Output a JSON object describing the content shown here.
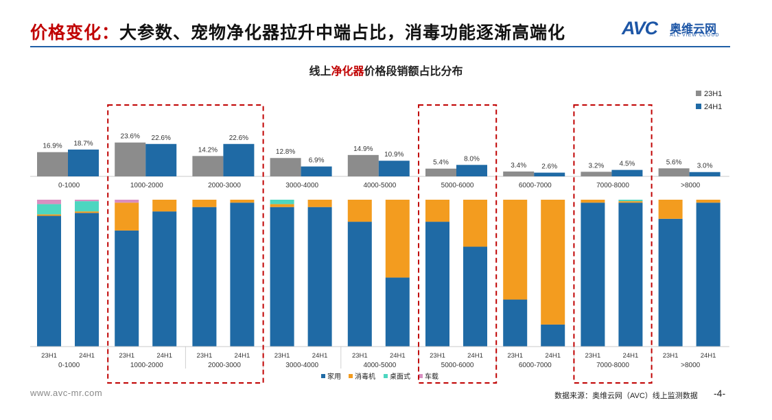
{
  "slide": {
    "title_highlight": "价格变化：",
    "title_rest": "大参数、宠物净化器拉升中端占比，消毒功能逐渐高端化",
    "logo_mark": "AVC",
    "logo_cn": "奥维云网",
    "logo_en": "ALL VIEW CLOUD",
    "footer_url": "www.avc-mr.com",
    "footer_source": "数据来源：奥维云网（AVC）线上监测数据",
    "page_number": "-4-"
  },
  "chart_data": [
    {
      "type": "bar",
      "title_pre": "线上",
      "title_highlight": "净化器",
      "title_post": "价格段销额占比分布",
      "categories": [
        "0-1000",
        "1000-2000",
        "2000-3000",
        "3000-4000",
        "4000-5000",
        "5000-6000",
        "6000-7000",
        "7000-8000",
        ">8000"
      ],
      "series": [
        {
          "name": "23H1",
          "color": "#8c8c8c",
          "values": [
            16.9,
            23.6,
            14.2,
            12.8,
            14.9,
            5.4,
            3.4,
            3.2,
            5.6
          ],
          "labels": [
            "16.9%",
            "23.6%",
            "14.2%",
            "12.8%",
            "14.9%",
            "5.4%",
            "3.4%",
            "3.2%",
            "5.6%"
          ]
        },
        {
          "name": "24H1",
          "color": "#1f6aa5",
          "values": [
            18.7,
            22.6,
            22.6,
            6.9,
            10.9,
            8.0,
            2.6,
            4.5,
            3.0
          ],
          "labels": [
            "18.7%",
            "22.6%",
            "22.6%",
            "6.9%",
            "10.9%",
            "8.0%",
            "2.6%",
            "4.5%",
            "3.0%"
          ]
        }
      ],
      "ylim": [
        0,
        25
      ]
    },
    {
      "type": "bar",
      "stacked": true,
      "percent": true,
      "categories": [
        "0-1000",
        "1000-2000",
        "2000-3000",
        "3000-4000",
        "4000-5000",
        "5000-6000",
        "6000-7000",
        "7000-8000",
        ">8000"
      ],
      "sub_categories": [
        "23H1",
        "24H1"
      ],
      "series": [
        {
          "name": "家用",
          "color": "#1f6aa5",
          "values": [
            [
              89,
              91
            ],
            [
              79,
              92
            ],
            [
              95,
              98
            ],
            [
              95,
              95
            ],
            [
              85,
              47
            ],
            [
              85,
              68
            ],
            [
              32,
              15
            ],
            [
              98,
              98
            ],
            [
              87,
              98
            ]
          ]
        },
        {
          "name": "消毒机",
          "color": "#f39c1f",
          "values": [
            [
              1,
              1
            ],
            [
              19,
              8
            ],
            [
              5,
              2
            ],
            [
              2,
              5
            ],
            [
              15,
              53
            ],
            [
              15,
              32
            ],
            [
              68,
              85
            ],
            [
              2,
              1
            ],
            [
              13,
              2
            ]
          ]
        },
        {
          "name": "桌面式",
          "color": "#4dd6c0",
          "values": [
            [
              7,
              7
            ],
            [
              0,
              0
            ],
            [
              0,
              0
            ],
            [
              3,
              0
            ],
            [
              0,
              0
            ],
            [
              0,
              0
            ],
            [
              0,
              0
            ],
            [
              0,
              1
            ],
            [
              0,
              0
            ]
          ]
        },
        {
          "name": "车载",
          "color": "#d98ec0",
          "values": [
            [
              3,
              1
            ],
            [
              2,
              0
            ],
            [
              0,
              0
            ],
            [
              0,
              0
            ],
            [
              0,
              0
            ],
            [
              0,
              0
            ],
            [
              0,
              0
            ],
            [
              0,
              0
            ],
            [
              0,
              0
            ]
          ]
        }
      ]
    }
  ],
  "highlighted_groups": [
    "1000-2000",
    "2000-3000",
    "5000-6000",
    "7000-8000"
  ],
  "colors": {
    "highlight_box": "#c00000",
    "title_accent": "#c00000",
    "brand": "#1d56a6"
  }
}
